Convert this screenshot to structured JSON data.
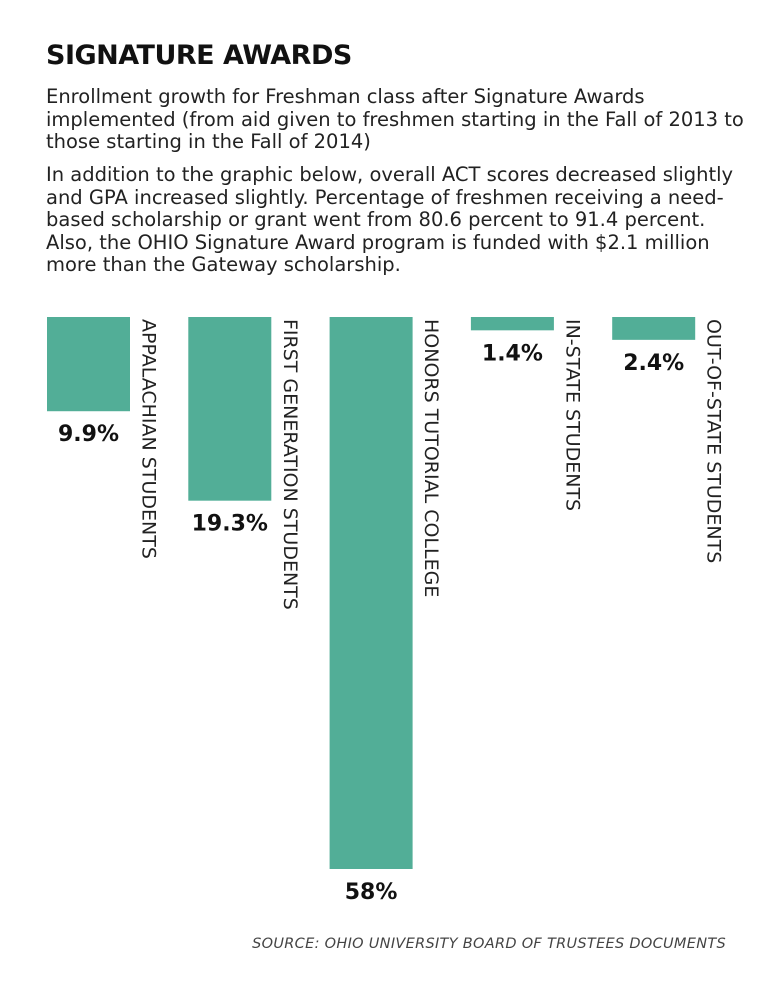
{
  "chart_data": {
    "type": "bar",
    "orientation": "vertical-hanging",
    "title": "SIGNATURE AWARDS",
    "subtitle": "Enrollment growth for Freshman class after Signature Awards implemented (from aid given to freshmen starting in the Fall of 2013 to those starting in the Fall of 2014)",
    "note": "In addition to the graphic below, overall ACT scores decreased slightly and GPA increased slightly. Percentage of freshmen receiving a need-based scholarship or grant went from 80.6 percent to 91.4 percent. Also, the OHIO Signature Award program is funded with $2.1 million more than the Gateway scholarship.",
    "categories": [
      "APPALACHIAN STUDENTS",
      "FIRST GENERATION STUDENTS",
      "HONORS TUTORIAL COLLEGE",
      "IN-STATE STUDENTS",
      "OUT-OF-STATE STUDENTS"
    ],
    "values": [
      9.9,
      19.3,
      58,
      1.4,
      2.4
    ],
    "value_labels": [
      "9.9%",
      "19.3%",
      "58%",
      "1.4%",
      "2.4%"
    ],
    "unit": "%",
    "ylim": [
      0,
      58
    ],
    "bar_color": "#52ae97",
    "source": "SOURCE: OHIO UNIVERSITY BOARD OF TRUSTEES DOCUMENTS"
  }
}
